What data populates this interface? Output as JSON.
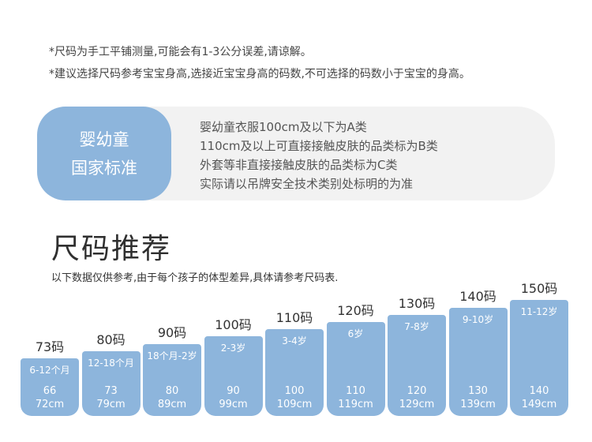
{
  "notes": [
    "*尺码为手工平铺测量,可能会有1-3公分误差,请谅解。",
    "*建议选择尺码参考宝宝身高,选接近宝宝身高的码数,不可选择的码数小于宝宝的身高。"
  ],
  "standard": {
    "badge_line1": "婴幼童",
    "badge_line2": "国家标准",
    "lines": [
      "婴幼童衣服100cm及以下为A类",
      "110cm及以上可直接接触皮肤的品类标为B类",
      "外套等非直接接触皮肤的品类标为C类",
      "实际请以吊牌安全技术类别处标明的为准"
    ]
  },
  "section": {
    "title": "尺码推荐",
    "subtitle": "以下数据仅供参考,由于每个孩子的体型差异,具体请参考尺码表."
  },
  "sizes": [
    {
      "label": "73码",
      "age": "6-12个月",
      "min": "66",
      "max": "72cm"
    },
    {
      "label": "80码",
      "age": "12-18个月",
      "min": "73",
      "max": "79cm"
    },
    {
      "label": "90码",
      "age": "18个月-2岁",
      "min": "80",
      "max": "89cm"
    },
    {
      "label": "100码",
      "age": "2-3岁",
      "min": "90",
      "max": "99cm"
    },
    {
      "label": "110码",
      "age": "3-4岁",
      "min": "100",
      "max": "109cm"
    },
    {
      "label": "120码",
      "age": "6岁",
      "min": "110",
      "max": "119cm"
    },
    {
      "label": "130码",
      "age": "7-8岁",
      "min": "120",
      "max": "129cm"
    },
    {
      "label": "140码",
      "age": "9-10岁",
      "min": "130",
      "max": "139cm"
    },
    {
      "label": "150码",
      "age": "11-12岁",
      "min": "140",
      "max": "149cm"
    }
  ],
  "colors": {
    "accent": "#8db5dc",
    "band": "#f2f2f2"
  }
}
